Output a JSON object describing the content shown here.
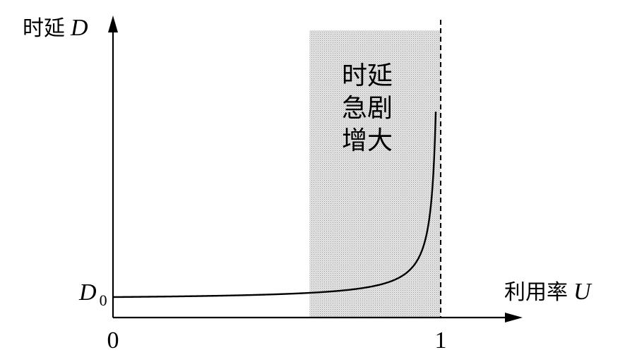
{
  "chart_data": {
    "type": "line",
    "ylabel_prefix": "时延",
    "ylabel_var": "D",
    "xlabel_prefix": "利用率",
    "xlabel_var": "U",
    "y_start_label_var": "D",
    "y_start_label_sub": "0",
    "x_ticks": [
      "0",
      "1"
    ],
    "annotation_lines": [
      "时延",
      "急剧",
      "增大"
    ],
    "shaded_region_x": [
      0.6,
      1.0
    ],
    "asymptote_x": 1.0,
    "curve": {
      "formula": "D = D0 / (1 - U)",
      "x_range": [
        0,
        0.985
      ]
    },
    "colors": {
      "curve": "#000000",
      "axes": "#000000",
      "shade": "#d9d9d9"
    }
  }
}
